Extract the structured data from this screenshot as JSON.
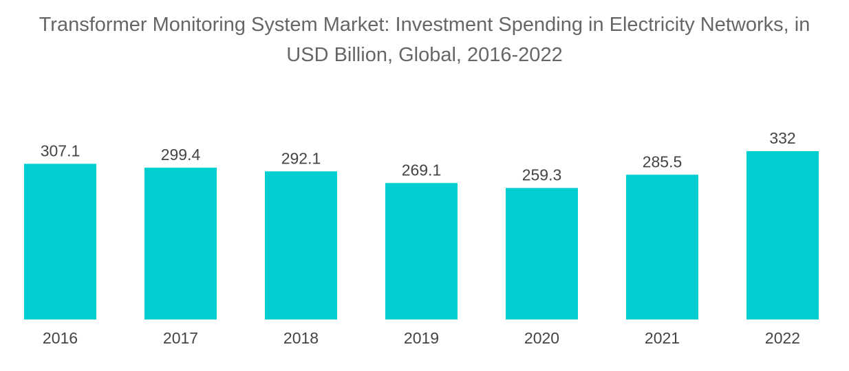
{
  "title_line1": "Transformer Monitoring System Market: Investment Spending in Electricity Networks, in",
  "title_line2": "USD Billion, Global, 2016-2022",
  "colors": {
    "bar": "#00CED1",
    "text": "#444444",
    "title": "#666666"
  },
  "chart_data": {
    "type": "bar",
    "title": "Transformer Monitoring System Market: Investment Spending in Electricity Networks, in USD Billion, Global, 2016-2022",
    "categories": [
      "2016",
      "2017",
      "2018",
      "2019",
      "2020",
      "2021",
      "2022"
    ],
    "values": [
      307.1,
      299.4,
      292.1,
      269.1,
      259.3,
      285.5,
      332
    ],
    "value_labels": [
      "307.1",
      "299.4",
      "292.1",
      "269.1",
      "259.3",
      "285.5",
      "332"
    ],
    "xlabel": "",
    "ylabel": "",
    "ylim": [
      0,
      332
    ],
    "grid": false,
    "legend": "none",
    "data_labels": true
  }
}
